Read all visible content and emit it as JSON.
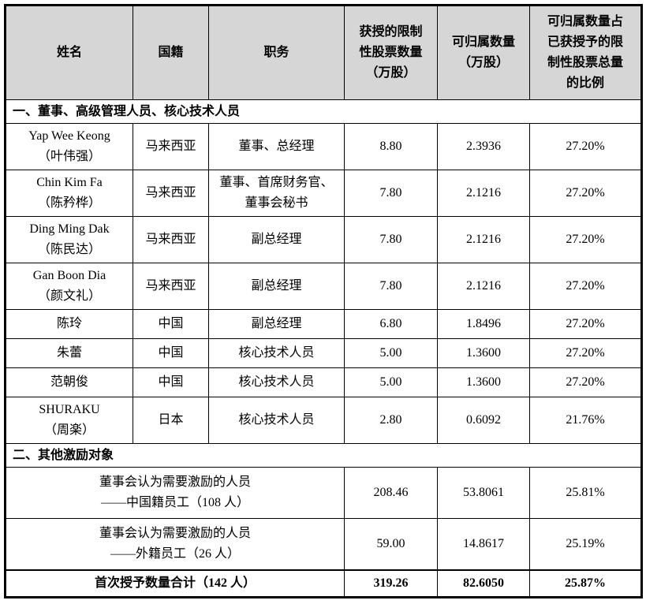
{
  "colors": {
    "page_bg": "#ffffff",
    "header_bg": "#d6d6d6",
    "border": "#000000",
    "text": "#000000"
  },
  "table": {
    "columns": [
      "姓名",
      "国籍",
      "职务",
      "获授的限制\n性股票数量\n（万股）",
      "可归属数量\n（万股）",
      "可归属数量占\n已获授予的限\n制性股票总量\n的比例"
    ],
    "sections": [
      "一、董事、高级管理人员、核心技术人员",
      "二、其他激励对象"
    ],
    "executives": [
      {
        "name": "Yap Wee Keong\n（叶伟强）",
        "nationality": "马来西亚",
        "position": "董事、总经理",
        "granted": "8.80",
        "vestable": "2.3936",
        "ratio": "27.20%"
      },
      {
        "name": "Chin Kim Fa\n（陈矜桦）",
        "nationality": "马来西亚",
        "position": "董事、首席财务官、\n董事会秘书",
        "granted": "7.80",
        "vestable": "2.1216",
        "ratio": "27.20%"
      },
      {
        "name": "Ding Ming Dak\n（陈民达）",
        "nationality": "马来西亚",
        "position": "副总经理",
        "granted": "7.80",
        "vestable": "2.1216",
        "ratio": "27.20%"
      },
      {
        "name": "Gan Boon Dia\n（颜文礼）",
        "nationality": "马来西亚",
        "position": "副总经理",
        "granted": "7.80",
        "vestable": "2.1216",
        "ratio": "27.20%"
      },
      {
        "name": "陈玲",
        "nationality": "中国",
        "position": "副总经理",
        "granted": "6.80",
        "vestable": "1.8496",
        "ratio": "27.20%"
      },
      {
        "name": "朱蕾",
        "nationality": "中国",
        "position": "核心技术人员",
        "granted": "5.00",
        "vestable": "1.3600",
        "ratio": "27.20%"
      },
      {
        "name": "范朝俊",
        "nationality": "中国",
        "position": "核心技术人员",
        "granted": "5.00",
        "vestable": "1.3600",
        "ratio": "27.20%"
      },
      {
        "name": "SHURAKU\n（周楽）",
        "nationality": "日本",
        "position": "核心技术人员",
        "granted": "2.80",
        "vestable": "0.6092",
        "ratio": "21.76%"
      }
    ],
    "others": [
      {
        "label": "董事会认为需要激励的人员\n——中国籍员工（108 人）",
        "granted": "208.46",
        "vestable": "53.8061",
        "ratio": "25.81%"
      },
      {
        "label": "董事会认为需要激励的人员\n——外籍员工（26 人）",
        "granted": "59.00",
        "vestable": "14.8617",
        "ratio": "25.19%"
      }
    ],
    "total": {
      "label": "首次授予数量合计（142 人）",
      "granted": "319.26",
      "vestable": "82.6050",
      "ratio": "25.87%"
    }
  }
}
